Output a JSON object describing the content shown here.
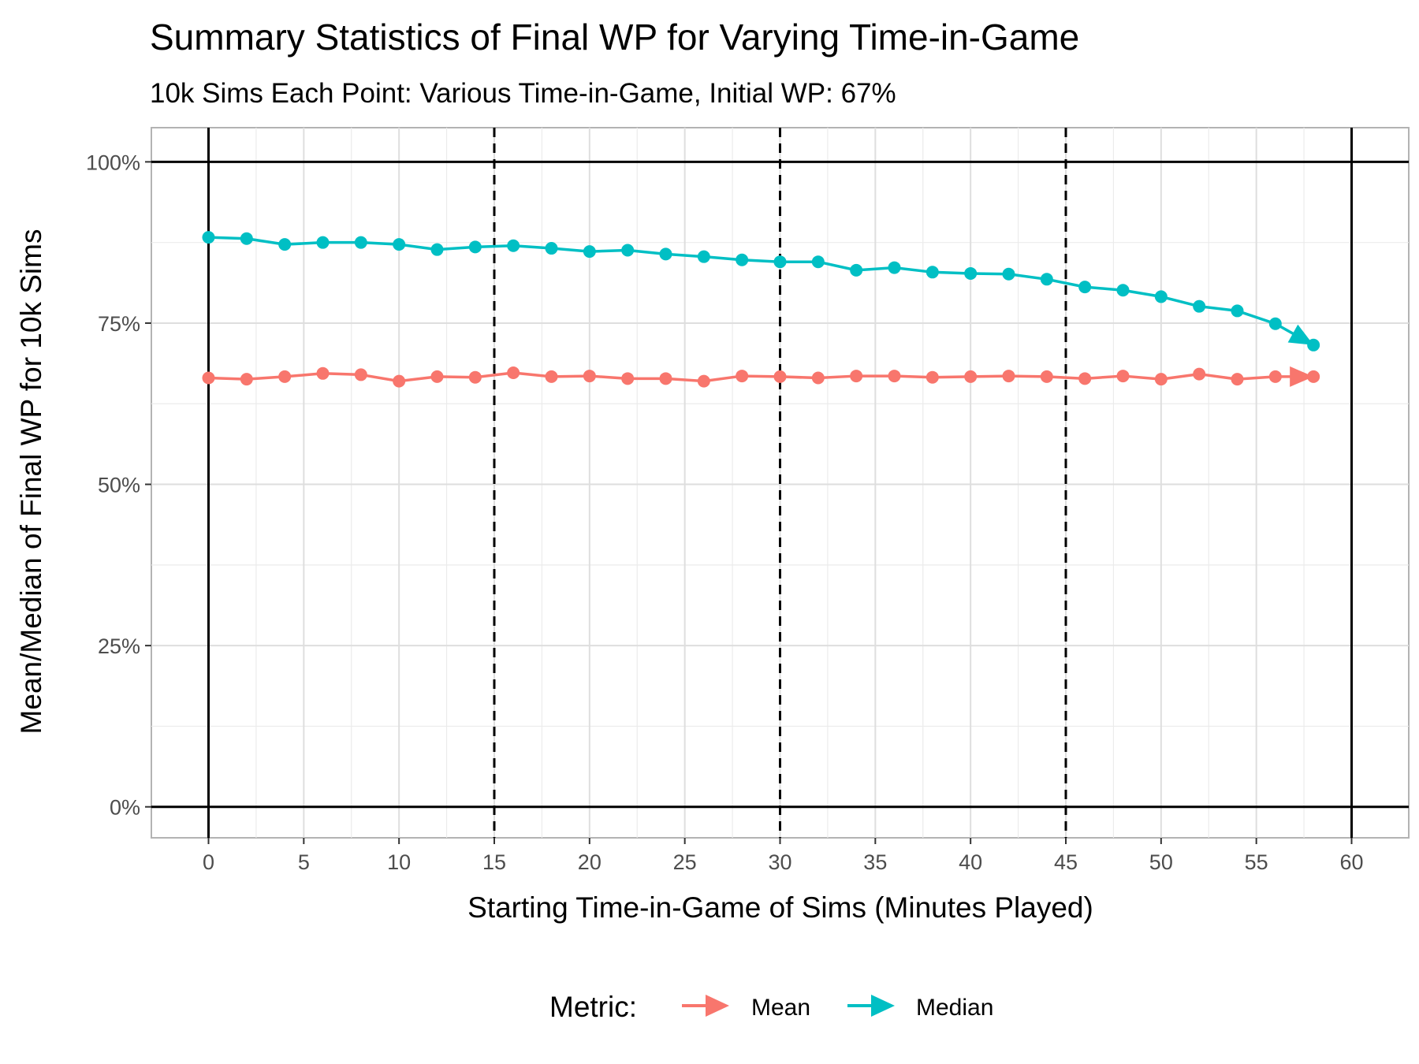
{
  "chart_data": {
    "type": "line",
    "title": "Summary Statistics of Final WP for Varying Time-in-Game",
    "subtitle": "10k Sims Each Point: Various Time-in-Game, Initial WP: 67%",
    "xlabel": "Starting Time-in-Game of Sims (Minutes Played)",
    "ylabel": "Mean/Median of Final WP for 10k Sims",
    "xlim": [
      -3,
      63
    ],
    "ylim": [
      -0.048,
      1.053
    ],
    "x_ticks": [
      0,
      5,
      10,
      15,
      20,
      25,
      30,
      35,
      40,
      45,
      50,
      55,
      60
    ],
    "x_tick_labels": [
      "0",
      "5",
      "10",
      "15",
      "20",
      "25",
      "30",
      "35",
      "40",
      "45",
      "50",
      "55",
      "60"
    ],
    "y_ticks": [
      0,
      0.25,
      0.5,
      0.75,
      1.0
    ],
    "y_tick_labels": [
      "0%",
      "25%",
      "50%",
      "75%",
      "100%"
    ],
    "grid": true,
    "reference_lines": {
      "solid_horizontal": [
        0,
        1.0
      ],
      "solid_vertical": [
        0,
        60
      ],
      "dashed_vertical": [
        15,
        30,
        45
      ]
    },
    "x": [
      0,
      2,
      4,
      6,
      8,
      10,
      12,
      14,
      16,
      18,
      20,
      22,
      24,
      26,
      28,
      30,
      32,
      34,
      36,
      38,
      40,
      42,
      44,
      46,
      48,
      50,
      52,
      54,
      56,
      58
    ],
    "series": [
      {
        "name": "Mean",
        "color": "#F8766D",
        "values": [
          0.665,
          0.663,
          0.667,
          0.672,
          0.67,
          0.66,
          0.667,
          0.666,
          0.673,
          0.667,
          0.668,
          0.664,
          0.664,
          0.66,
          0.668,
          0.667,
          0.665,
          0.668,
          0.668,
          0.666,
          0.667,
          0.668,
          0.667,
          0.664,
          0.668,
          0.663,
          0.671,
          0.663,
          0.667,
          0.667
        ]
      },
      {
        "name": "Median",
        "color": "#00BFC4",
        "values": [
          0.883,
          0.881,
          0.872,
          0.875,
          0.875,
          0.872,
          0.864,
          0.868,
          0.87,
          0.866,
          0.861,
          0.863,
          0.857,
          0.853,
          0.848,
          0.845,
          0.845,
          0.832,
          0.836,
          0.829,
          0.827,
          0.826,
          0.818,
          0.806,
          0.801,
          0.791,
          0.776,
          0.769,
          0.749,
          0.716
        ]
      }
    ],
    "legend": {
      "title": "Metric:",
      "position": "bottom",
      "labels": [
        "Mean",
        "Median"
      ]
    }
  }
}
